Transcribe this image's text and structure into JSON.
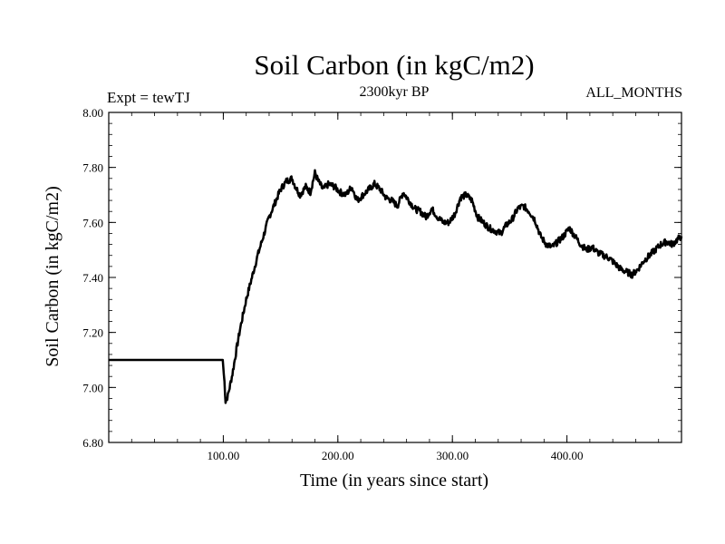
{
  "chart_data": {
    "type": "line",
    "title": "Soil Carbon (in kgC/m2)",
    "subtitle": "2300kyr BP",
    "left_note": "Expt = tewTJ",
    "right_note": "ALL_MONTHS",
    "xlabel": "Time (in years since start)",
    "ylabel": "Soil Carbon (in kgC/m2)",
    "xlim": [
      0,
      500
    ],
    "ylim": [
      6.8,
      8.0
    ],
    "x_ticks": [
      {
        "value": 100,
        "label": "100.00"
      },
      {
        "value": 200,
        "label": "200.00"
      },
      {
        "value": 300,
        "label": "300.00"
      },
      {
        "value": 400,
        "label": "400.00"
      }
    ],
    "y_ticks": [
      {
        "value": 6.8,
        "label": "6.80"
      },
      {
        "value": 7.0,
        "label": "7.00"
      },
      {
        "value": 7.2,
        "label": "7.20"
      },
      {
        "value": 7.4,
        "label": "7.40"
      },
      {
        "value": 7.6,
        "label": "7.60"
      },
      {
        "value": 7.8,
        "label": "7.80"
      },
      {
        "value": 8.0,
        "label": "8.00"
      }
    ],
    "grid": false,
    "series": [
      {
        "name": "Soil Carbon",
        "color": "#000000",
        "x": [
          0,
          99.5,
          101,
          102,
          104,
          108,
          112,
          115,
          120,
          125,
          130,
          135,
          140,
          145,
          150,
          155,
          160,
          163,
          167,
          172,
          176,
          180,
          183,
          187,
          192,
          197,
          202,
          207,
          212,
          217,
          222,
          227,
          232,
          237,
          242,
          247,
          252,
          257,
          262,
          267,
          272,
          277,
          282,
          287,
          292,
          297,
          302,
          307,
          312,
          317,
          322,
          327,
          332,
          337,
          342,
          347,
          352,
          357,
          362,
          367,
          372,
          377,
          382,
          387,
          392,
          397,
          402,
          407,
          412,
          417,
          422,
          427,
          432,
          437,
          442,
          447,
          452,
          457,
          462,
          467,
          472,
          477,
          482,
          487,
          492,
          497,
          500
        ],
        "y": [
          7.1,
          7.1,
          7.02,
          6.95,
          6.97,
          7.05,
          7.15,
          7.22,
          7.32,
          7.4,
          7.48,
          7.55,
          7.62,
          7.67,
          7.72,
          7.75,
          7.76,
          7.73,
          7.7,
          7.73,
          7.71,
          7.78,
          7.75,
          7.72,
          7.74,
          7.73,
          7.71,
          7.7,
          7.73,
          7.68,
          7.7,
          7.72,
          7.74,
          7.72,
          7.69,
          7.68,
          7.66,
          7.71,
          7.68,
          7.65,
          7.64,
          7.62,
          7.65,
          7.62,
          7.6,
          7.6,
          7.63,
          7.69,
          7.7,
          7.68,
          7.62,
          7.6,
          7.58,
          7.57,
          7.56,
          7.59,
          7.61,
          7.65,
          7.66,
          7.64,
          7.61,
          7.55,
          7.52,
          7.51,
          7.53,
          7.55,
          7.58,
          7.55,
          7.52,
          7.5,
          7.51,
          7.49,
          7.48,
          7.47,
          7.45,
          7.43,
          7.42,
          7.41,
          7.43,
          7.46,
          7.48,
          7.5,
          7.52,
          7.53,
          7.52,
          7.54,
          7.55
        ]
      }
    ]
  }
}
